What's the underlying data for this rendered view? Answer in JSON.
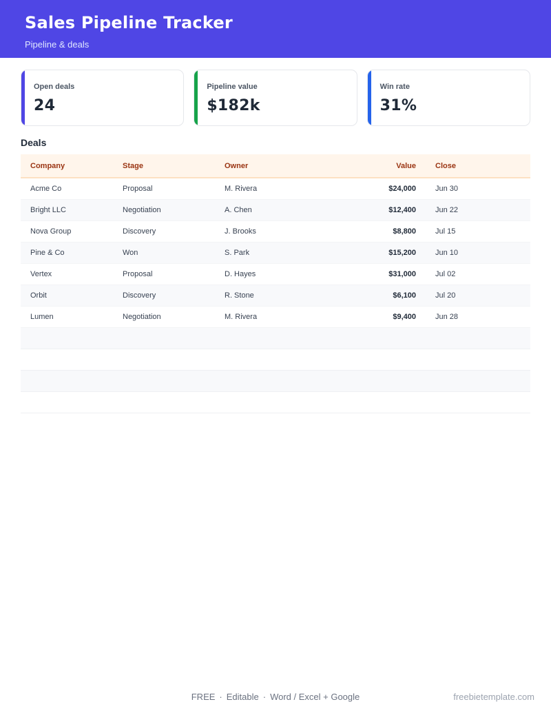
{
  "header": {
    "title": "Sales Pipeline Tracker",
    "subtitle": "Pipeline & deals",
    "color": "#4f46e5"
  },
  "cards": [
    {
      "label": "Open deals",
      "value": "24",
      "accent": "#4f46e5"
    },
    {
      "label": "Pipeline value",
      "value": "$182k",
      "accent": "#16a34a"
    },
    {
      "label": "Win rate",
      "value": "31%",
      "accent": "#2563eb"
    }
  ],
  "deals": {
    "title": "Deals",
    "columns": {
      "company": "Company",
      "stage": "Stage",
      "owner": "Owner",
      "value": "Value",
      "close": "Close"
    },
    "rows": [
      {
        "company": "Acme Co",
        "stage": "Proposal",
        "owner": "M. Rivera",
        "value": "$24,000",
        "close": "Jun 30"
      },
      {
        "company": "Bright LLC",
        "stage": "Negotiation",
        "owner": "A. Chen",
        "value": "$12,400",
        "close": "Jun 22"
      },
      {
        "company": "Nova Group",
        "stage": "Discovery",
        "owner": "J. Brooks",
        "value": "$8,800",
        "close": "Jul 15"
      },
      {
        "company": "Pine & Co",
        "stage": "Won",
        "owner": "S. Park",
        "value": "$15,200",
        "close": "Jun 10"
      },
      {
        "company": "Vertex",
        "stage": "Proposal",
        "owner": "D. Hayes",
        "value": "$31,000",
        "close": "Jul 02"
      },
      {
        "company": "Orbit",
        "stage": "Discovery",
        "owner": "R. Stone",
        "value": "$6,100",
        "close": "Jul 20"
      },
      {
        "company": "Lumen",
        "stage": "Negotiation",
        "owner": "M. Rivera",
        "value": "$9,400",
        "close": "Jun 28"
      }
    ]
  },
  "footer": {
    "free": "FREE",
    "editable": "Editable",
    "formats": "Word / Excel + Google",
    "site": "freebietemplate.com"
  }
}
